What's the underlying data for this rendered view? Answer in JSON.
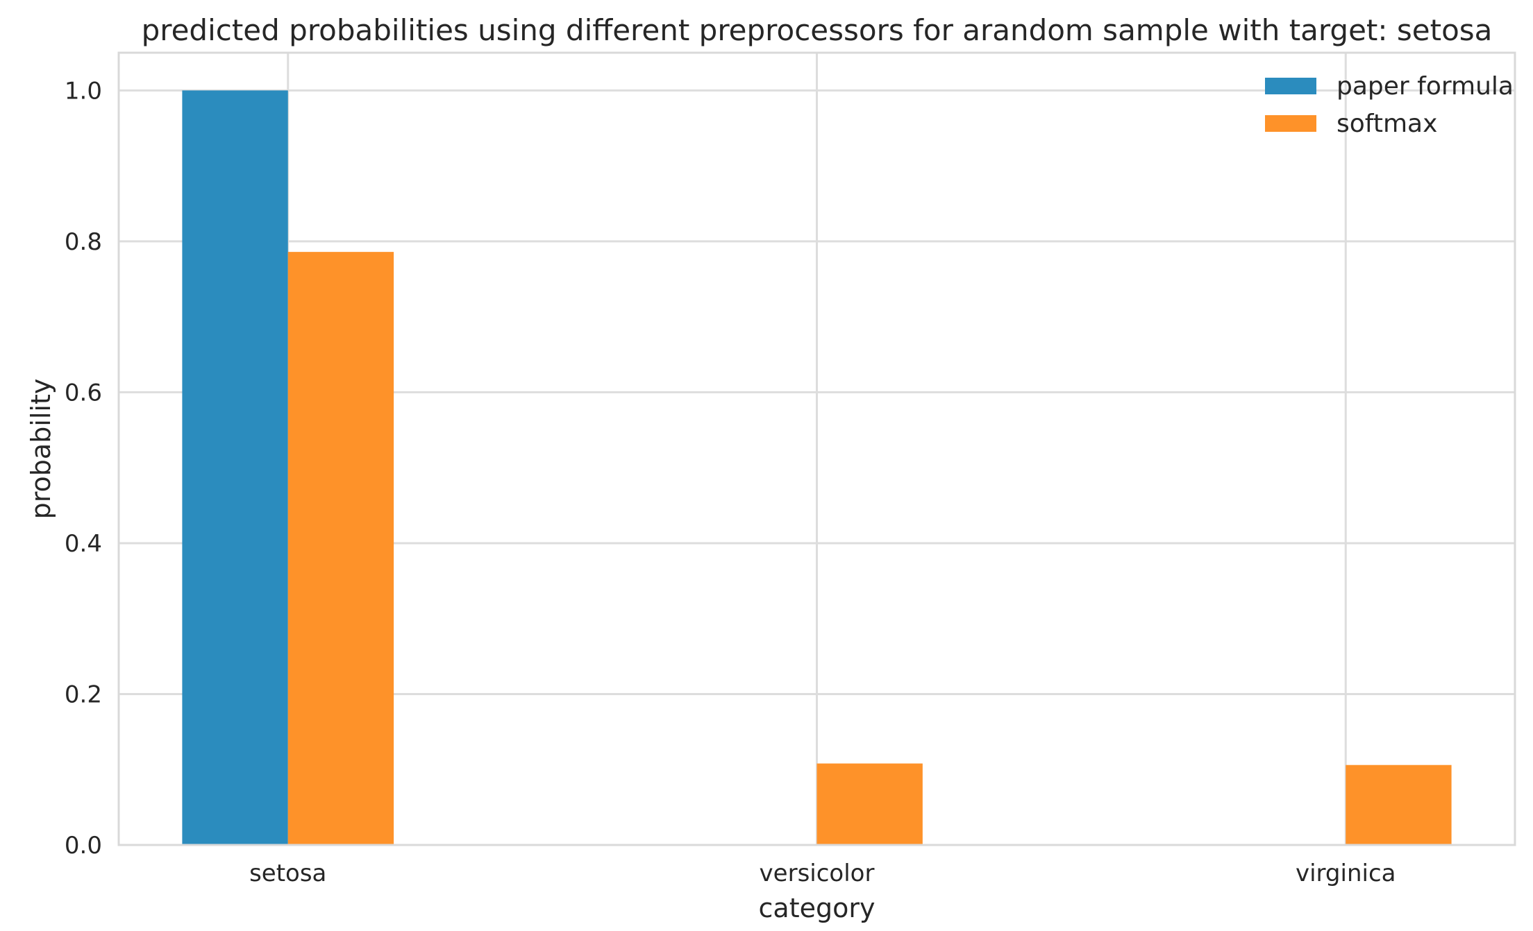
{
  "chart_data": {
    "type": "bar",
    "title": "predicted probabilities using different preprocessors for arandom sample with target: setosa",
    "xlabel": "category",
    "ylabel": "probability",
    "categories": [
      "setosa",
      "versicolor",
      "virginica"
    ],
    "series": [
      {
        "name": "paper formula",
        "color": "#2b8cbe",
        "values": [
          1.0,
          0.0,
          0.0
        ]
      },
      {
        "name": "softmax",
        "color": "#fe9229",
        "values": [
          0.786,
          0.108,
          0.106
        ]
      }
    ],
    "ylim": [
      0,
      1.05
    ],
    "yticks": [
      "0.0",
      "0.2",
      "0.4",
      "0.6",
      "0.8",
      "1.0"
    ],
    "grid": true,
    "legend_position": "top-right"
  }
}
